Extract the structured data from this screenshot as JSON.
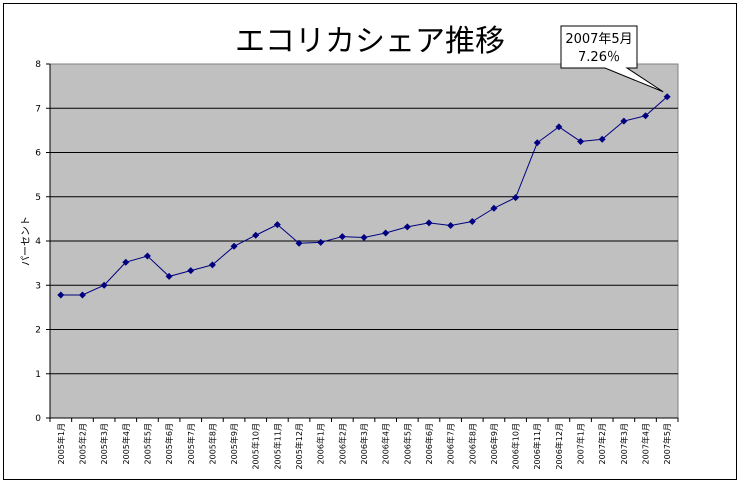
{
  "chart_data": {
    "type": "line",
    "title": "エコリカシェア推移",
    "ylabel": "パーセント",
    "xlabel": "",
    "ylim": [
      0,
      8
    ],
    "yticks": [
      0,
      1,
      2,
      3,
      4,
      5,
      6,
      7,
      8
    ],
    "grid": true,
    "categories": [
      "2005年1月",
      "2005年2月",
      "2005年3月",
      "2005年4月",
      "2005年5月",
      "2005年6月",
      "2005年7月",
      "2005年8月",
      "2005年9月",
      "2005年10月",
      "2005年11月",
      "2005年12月",
      "2006年1月",
      "2006年2月",
      "2006年3月",
      "2006年4月",
      "2006年5月",
      "2006年6月",
      "2006年7月",
      "2006年8月",
      "2006年9月",
      "2006年10月",
      "2006年11月",
      "2006年12月",
      "2007年1月",
      "2007年2月",
      "2007年3月",
      "2007年4月",
      "2007年5月"
    ],
    "series": [
      {
        "values": [
          2.78,
          2.78,
          3.0,
          3.52,
          3.66,
          3.2,
          3.33,
          3.46,
          3.88,
          4.13,
          4.37,
          3.95,
          3.97,
          4.1,
          4.08,
          4.18,
          4.32,
          4.41,
          4.35,
          4.44,
          4.74,
          4.98,
          6.22,
          6.58,
          6.25,
          6.3,
          6.71,
          6.83,
          7.26
        ]
      }
    ],
    "annotation": {
      "label_line1": "2007年5月",
      "label_line2": "7.26％",
      "target_index": 28
    },
    "colors": {
      "plot_background": "#c0c0c0",
      "line": "#000080",
      "gridline": "#000000"
    }
  }
}
